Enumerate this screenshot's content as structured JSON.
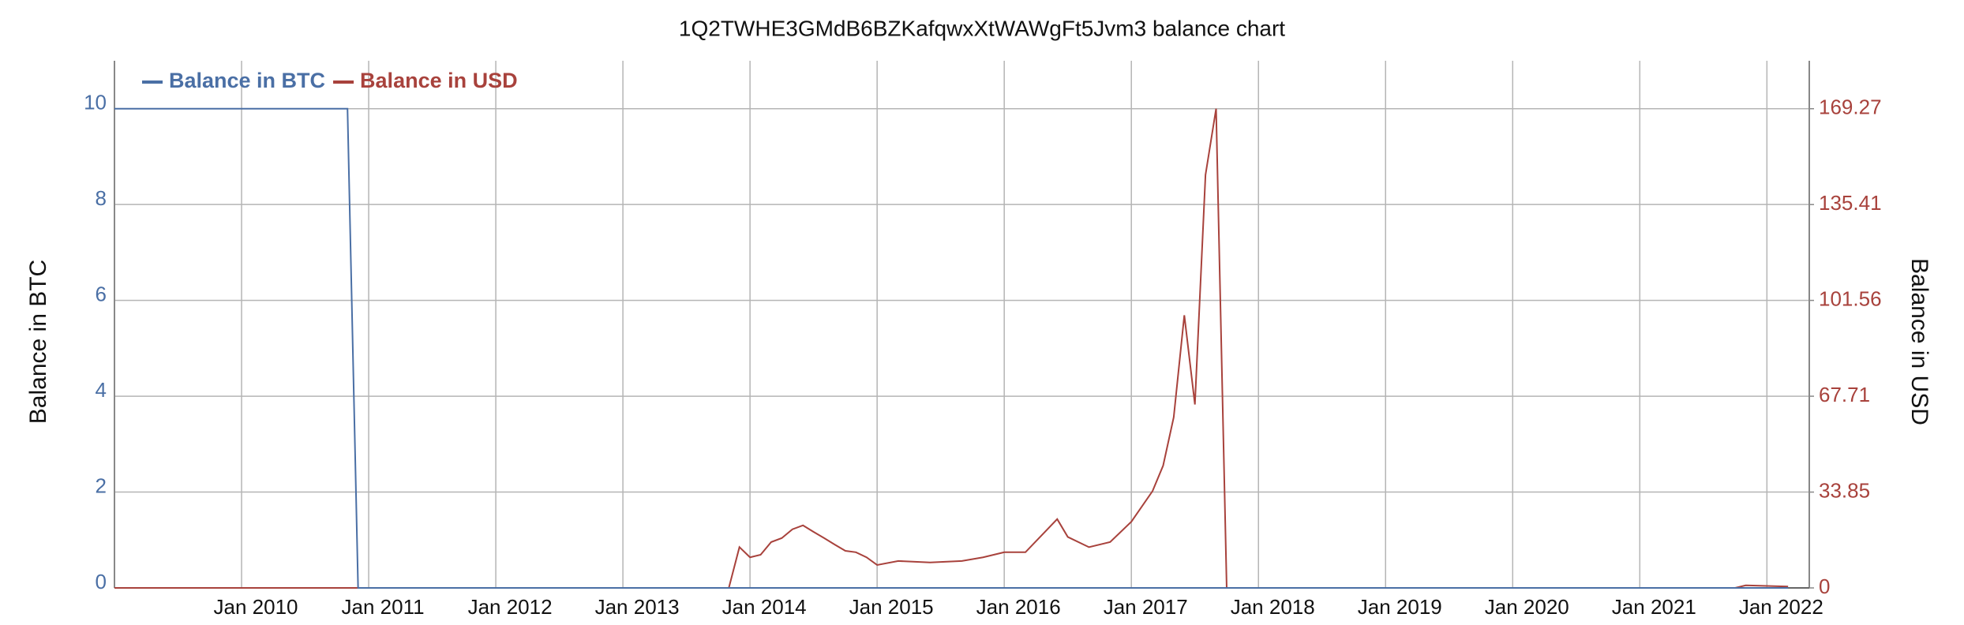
{
  "chart_data": {
    "type": "line",
    "title": "1Q2TWHE3GMdB6BZKafqwxXtWAWgFt5Jvm3 balance chart",
    "y_label": "Balance in BTC",
    "y2_label": "Balance in USD",
    "x": [
      "2009-01",
      "2010-11",
      "2010-12",
      "2013-11",
      "2013-12",
      "2014-01",
      "2014-02",
      "2014-03",
      "2014-04",
      "2014-05",
      "2014-06",
      "2014-07",
      "2014-08",
      "2014-09",
      "2014-10",
      "2014-11",
      "2014-12",
      "2015-01",
      "2015-03",
      "2015-06",
      "2015-09",
      "2015-11",
      "2016-01",
      "2016-03",
      "2016-06",
      "2016-07",
      "2016-09",
      "2016-11",
      "2017-01",
      "2017-02",
      "2017-03",
      "2017-04",
      "2017-05",
      "2017-06",
      "2017-07",
      "2017-08",
      "2017-09",
      "2017-10",
      "2021-10",
      "2021-11",
      "2022-03"
    ],
    "series": [
      {
        "name": "Balance in BTC",
        "color": "#4a6fa5",
        "axis": "y",
        "values": [
          10,
          10,
          0,
          0,
          0,
          0,
          0,
          0,
          0,
          0,
          0,
          0,
          0,
          0,
          0,
          0,
          0,
          0,
          0,
          0,
          0,
          0,
          0,
          0,
          0,
          0,
          0,
          0,
          0,
          0,
          0,
          0,
          0,
          0,
          0,
          0,
          0,
          0,
          0,
          0,
          0
        ]
      },
      {
        "name": "Balance in USD",
        "color": "#a8423c",
        "axis": "y2",
        "values": [
          0,
          0,
          0,
          0,
          14.4,
          10.8,
          11.7,
          16.2,
          17.6,
          20.7,
          22.1,
          19.8,
          17.6,
          15.3,
          13.1,
          12.6,
          10.8,
          8.1,
          9.5,
          9.0,
          9.5,
          10.8,
          12.6,
          12.6,
          24.3,
          18,
          14.4,
          16.2,
          23.4,
          28.8,
          34.2,
          43.2,
          60.3,
          96.3,
          64.8,
          145.9,
          169.27,
          0,
          0,
          0.9,
          0.5
        ]
      }
    ],
    "xlim": [
      "2009-01",
      "2022-05"
    ],
    "xticks": [
      {
        "value": "2010-01",
        "label": "Jan 2010"
      },
      {
        "value": "2011-01",
        "label": "Jan 2011"
      },
      {
        "value": "2012-01",
        "label": "Jan 2012"
      },
      {
        "value": "2013-01",
        "label": "Jan 2013"
      },
      {
        "value": "2014-01",
        "label": "Jan 2014"
      },
      {
        "value": "2015-01",
        "label": "Jan 2015"
      },
      {
        "value": "2016-01",
        "label": "Jan 2016"
      },
      {
        "value": "2017-01",
        "label": "Jan 2017"
      },
      {
        "value": "2018-01",
        "label": "Jan 2018"
      },
      {
        "value": "2019-01",
        "label": "Jan 2019"
      },
      {
        "value": "2020-01",
        "label": "Jan 2020"
      },
      {
        "value": "2021-01",
        "label": "Jan 2021"
      },
      {
        "value": "2022-01",
        "label": "Jan 2022"
      }
    ],
    "ylim": [
      0,
      11
    ],
    "yticks": [
      0,
      2,
      4,
      6,
      8,
      10
    ],
    "y2lim": [
      0,
      186.2
    ],
    "y2ticks": [
      0,
      33.85,
      67.71,
      101.56,
      135.41,
      169.27
    ],
    "grid": true,
    "legend": "top-left"
  }
}
